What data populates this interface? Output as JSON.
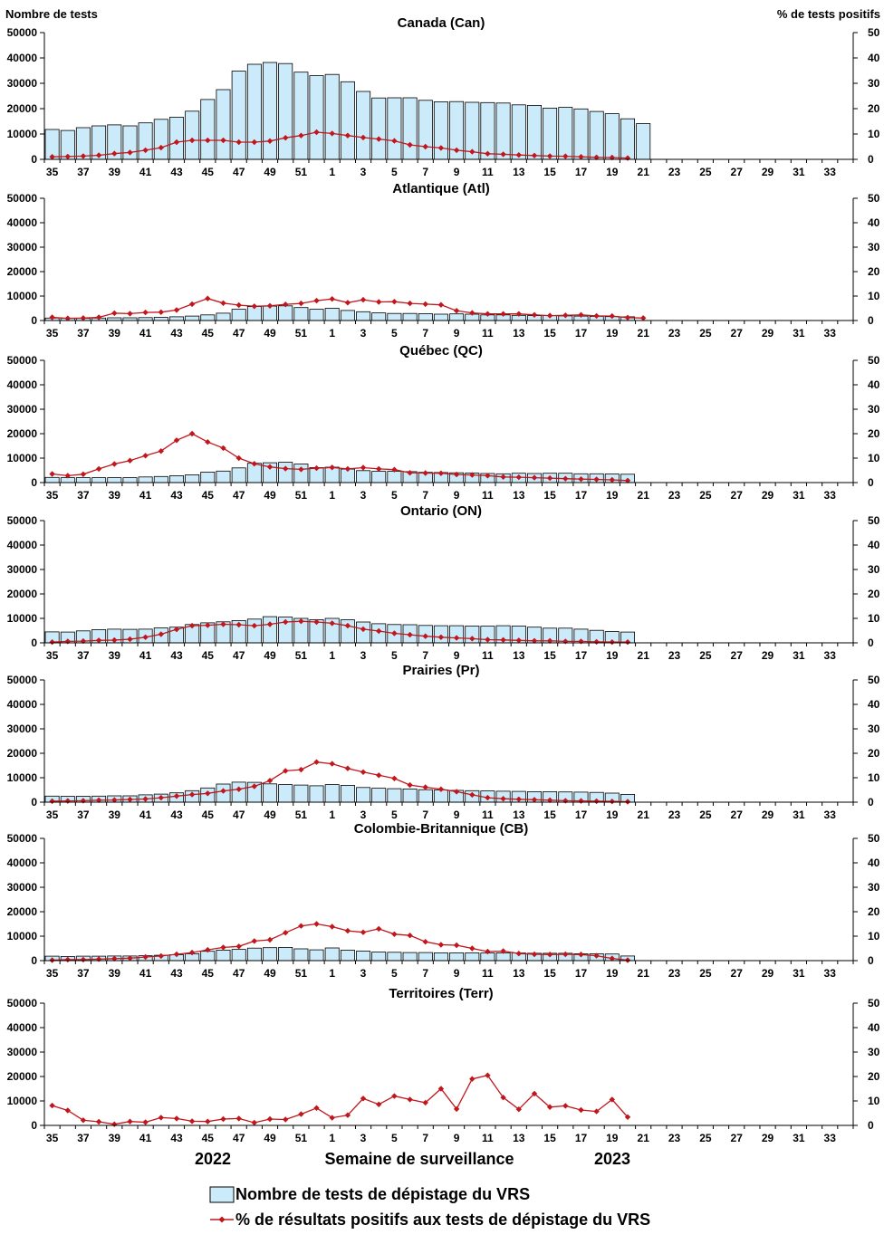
{
  "left_axis_title": "Nombre de tests",
  "right_axis_title": "%  de tests positifs",
  "xlabel": "Semaine de surveillance",
  "year_left": "2022",
  "year_right": "2023",
  "legend": {
    "bars": "Nombre de tests de dépistage du VRS",
    "line": "% de résultats positifs aux tests de dépistage du VRS"
  },
  "colors": {
    "bar_fill": "#CCEBFA",
    "bar_stroke": "#000000",
    "line": "#C0161C",
    "axis": "#000000"
  },
  "chart_data": {
    "type": "bar+line",
    "weeks": [
      35,
      36,
      37,
      38,
      39,
      40,
      41,
      42,
      43,
      44,
      45,
      46,
      47,
      48,
      49,
      50,
      51,
      52,
      1,
      2,
      3,
      4,
      5,
      6,
      7,
      8,
      9,
      10,
      11,
      12,
      13,
      14,
      15,
      16,
      17,
      18,
      19,
      20,
      21,
      22,
      23,
      24,
      25,
      26,
      27,
      28,
      29,
      30,
      31,
      32,
      33,
      34
    ],
    "x_tick_labels": [
      "35",
      "37",
      "39",
      "41",
      "43",
      "45",
      "47",
      "49",
      "51",
      "1",
      "3",
      "5",
      "7",
      "9",
      "11",
      "13",
      "15",
      "17",
      "19",
      "21",
      "23",
      "25",
      "27",
      "29",
      "31",
      "33"
    ],
    "y_left_ticks": [
      "0",
      "10000",
      "20000",
      "30000",
      "40000",
      "50000"
    ],
    "y_right_ticks": [
      "0",
      "10",
      "20",
      "30",
      "40",
      "50"
    ],
    "ylim_left": [
      0,
      50000
    ],
    "ylim_right": [
      0,
      50
    ],
    "panels": [
      {
        "name": "Canada (Can)",
        "tests": [
          11800,
          11400,
          12500,
          13200,
          13600,
          13200,
          14400,
          15800,
          16600,
          19000,
          23600,
          27500,
          34800,
          37500,
          38200,
          37800,
          34400,
          33000,
          33500,
          30600,
          26800,
          24200,
          24300,
          24300,
          23300,
          22700,
          22800,
          22500,
          22400,
          22200,
          21500,
          21300,
          20200,
          20500,
          19900,
          18900,
          18000,
          16000,
          14100
        ],
        "pct": [
          1,
          1.1,
          1.3,
          1.6,
          2.3,
          2.7,
          3.6,
          4.6,
          6.8,
          7.5,
          7.5,
          7.5,
          6.8,
          6.8,
          7.2,
          8.5,
          9.4,
          10.7,
          10.2,
          9.4,
          8.6,
          8,
          7.3,
          5.7,
          5,
          4.5,
          3.6,
          3,
          2.2,
          2,
          1.7,
          1.5,
          1.3,
          1.2,
          1,
          0.8,
          0.7,
          0.5,
          null
        ]
      },
      {
        "name": "Atlantique (Atl)",
        "tests": [
          1000,
          900,
          900,
          1000,
          1100,
          1100,
          1200,
          1300,
          1500,
          1800,
          2300,
          3000,
          4600,
          5700,
          5900,
          6000,
          5300,
          4600,
          5000,
          4100,
          3600,
          3100,
          2900,
          2900,
          2800,
          2600,
          2700,
          2600,
          2300,
          2300,
          2100,
          2000,
          2000,
          1900,
          1800,
          1700,
          1600,
          1500,
          null
        ],
        "pct": [
          1.3,
          0.9,
          1,
          1.3,
          3,
          2.8,
          3.3,
          3.4,
          4.3,
          6.7,
          9,
          7.1,
          6.3,
          5.8,
          6,
          6.6,
          7,
          8.1,
          8.8,
          7.3,
          8.5,
          7.6,
          7.7,
          7,
          6.7,
          6.4,
          4,
          3.1,
          2.7,
          2.7,
          2.7,
          2.3,
          2,
          2.1,
          2.3,
          1.9,
          1.8,
          1.2,
          1
        ]
      },
      {
        "name": "Québec (QC)",
        "tests": [
          2100,
          2000,
          2000,
          2000,
          2000,
          2000,
          2300,
          2500,
          2800,
          3200,
          4300,
          4700,
          6000,
          7900,
          8100,
          8300,
          7600,
          6100,
          6300,
          5500,
          4900,
          4600,
          4600,
          4500,
          4200,
          4100,
          4000,
          3900,
          3700,
          3600,
          3800,
          3700,
          3800,
          3800,
          3600,
          3600,
          3500,
          3400,
          null
        ],
        "pct": [
          3.5,
          2.8,
          3.4,
          5.6,
          7.6,
          9,
          11,
          12.9,
          17.3,
          20,
          16.6,
          14.1,
          10,
          7.7,
          6.4,
          5.7,
          5.4,
          5.9,
          6.2,
          5.6,
          6.1,
          5.6,
          5.3,
          4,
          3.9,
          3.8,
          3.3,
          3.1,
          2.8,
          2.3,
          2.2,
          2,
          1.8,
          1.6,
          1.4,
          1.3,
          1.1,
          0.8,
          null
        ]
      },
      {
        "name": "Ontario (ON)",
        "tests": [
          4500,
          4400,
          4900,
          5400,
          5600,
          5500,
          5600,
          6100,
          6400,
          7500,
          8200,
          8600,
          9100,
          9700,
          10700,
          10500,
          10000,
          9500,
          10000,
          9400,
          8500,
          7800,
          7500,
          7400,
          7100,
          7000,
          7000,
          6900,
          6800,
          7000,
          6900,
          6400,
          6000,
          6000,
          5600,
          5100,
          4600,
          4400,
          null
        ],
        "pct": [
          0.3,
          0.6,
          0.7,
          1,
          1.1,
          1.5,
          2.3,
          3.5,
          5.5,
          7,
          7.2,
          7.6,
          7.4,
          7,
          7.6,
          8.5,
          8.8,
          8.5,
          8,
          7,
          5.6,
          4.8,
          3.9,
          3.3,
          2.7,
          2.3,
          2,
          1.7,
          1.3,
          1.2,
          1,
          0.8,
          0.8,
          0.6,
          0.6,
          0.4,
          0.3,
          0.3,
          null
        ]
      },
      {
        "name": "Prairies (Pr)",
        "tests": [
          2500,
          2400,
          2400,
          2500,
          2600,
          2600,
          3000,
          3300,
          3800,
          4700,
          5800,
          7400,
          8200,
          8100,
          7500,
          7200,
          7000,
          6700,
          7200,
          6900,
          6000,
          5700,
          5500,
          5400,
          5100,
          5000,
          4800,
          4700,
          4600,
          4500,
          4400,
          4300,
          4300,
          4200,
          4100,
          4000,
          3700,
          3200,
          null
        ],
        "pct": [
          0.4,
          0.5,
          0.6,
          0.8,
          0.9,
          1.1,
          1.3,
          1.8,
          2.5,
          3.1,
          3.6,
          4.6,
          5.3,
          6.5,
          8.8,
          12.8,
          13.3,
          16.4,
          15.7,
          13.8,
          12.3,
          11,
          9.7,
          7,
          6.1,
          5.3,
          4.3,
          3,
          1.8,
          1.4,
          1.2,
          1,
          0.8,
          0.6,
          0.5,
          0.4,
          0.3,
          0.2,
          null
        ]
      },
      {
        "name": "Colombie-Britannique (CB)",
        "tests": [
          1800,
          1700,
          1800,
          1800,
          1900,
          1900,
          2000,
          2200,
          2400,
          2800,
          3800,
          4300,
          4600,
          5100,
          5300,
          5400,
          4800,
          4400,
          5200,
          4300,
          3900,
          3500,
          3400,
          3300,
          3300,
          3200,
          3200,
          3200,
          3100,
          3200,
          3100,
          3000,
          3000,
          3000,
          2800,
          2800,
          2700,
          1900,
          null
        ],
        "pct": [
          0.2,
          0.4,
          0.4,
          0.6,
          0.8,
          1,
          1.5,
          1.9,
          2.6,
          3.3,
          4.4,
          5.4,
          5.8,
          8,
          8.5,
          11.4,
          14.2,
          15,
          13.9,
          12.2,
          11.6,
          13,
          10.8,
          10.3,
          7.7,
          6.5,
          6.3,
          5,
          3.7,
          3.9,
          2.9,
          2.6,
          2.5,
          2.6,
          2.5,
          2,
          0.9,
          0.2,
          null
        ]
      },
      {
        "name": "Territoires (Terr)",
        "tests": [
          null,
          null,
          null,
          null,
          null,
          null,
          null,
          null,
          null,
          null,
          null,
          null,
          null,
          null,
          null,
          null,
          null,
          null,
          null,
          null,
          null,
          null,
          null,
          null,
          null,
          null,
          null,
          null,
          null,
          null,
          null,
          null,
          null,
          null,
          null,
          null,
          null,
          null,
          null
        ],
        "pct": [
          8.1,
          6.1,
          2.1,
          1.5,
          0.5,
          1.6,
          1.3,
          3.2,
          2.8,
          1.7,
          1.6,
          2.6,
          2.8,
          1.1,
          2.6,
          2.4,
          4.6,
          7.1,
          3.1,
          4.2,
          11,
          8.6,
          12,
          10.6,
          9.3,
          15,
          6.7,
          19,
          20.5,
          11.4,
          6.6,
          13,
          7.5,
          8,
          6.3,
          5.7,
          10.6,
          3.4,
          null
        ]
      }
    ]
  }
}
